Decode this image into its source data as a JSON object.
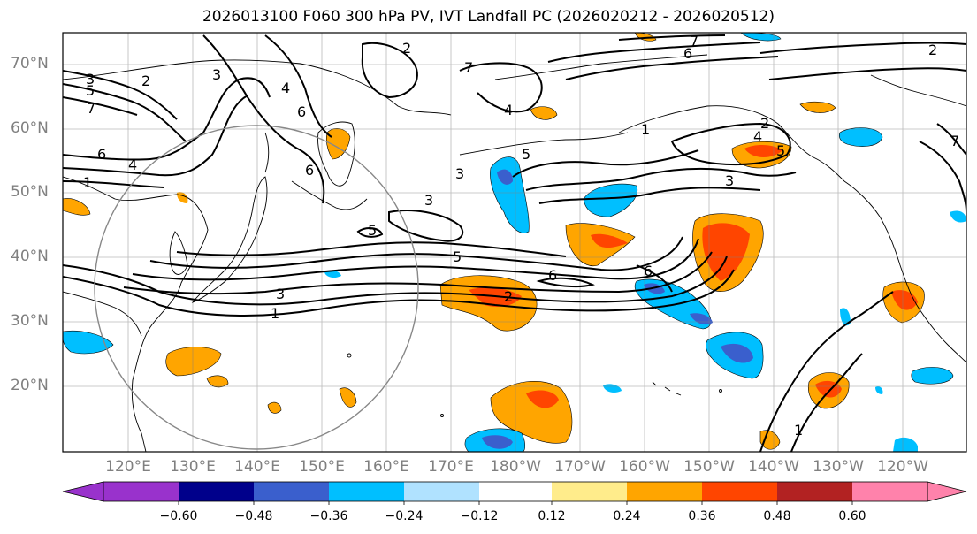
{
  "title": "2026013100 F060 300 hPa PV, IVT Landfall PC (2026020212 - 2026020512)",
  "map": {
    "projection": "PlateCarree",
    "lon_range": [
      "112°E",
      "115°W"
    ],
    "lat_range": [
      "10°N",
      "75°N"
    ],
    "lat_labels": [
      "70°N",
      "60°N",
      "50°N",
      "40°N",
      "30°N",
      "20°N"
    ],
    "lon_labels": [
      "120°E",
      "130°E",
      "140°E",
      "150°E",
      "160°E",
      "170°E",
      "180°W",
      "170°W",
      "160°W",
      "150°W",
      "140°W",
      "130°W",
      "120°W"
    ],
    "contour_labels": [
      "1",
      "2",
      "3",
      "4",
      "5",
      "6",
      "7"
    ],
    "gridlines": true,
    "colors": {
      "land_border": "#000000",
      "contour": "#000000",
      "grid": "#808080"
    }
  },
  "colorbar": {
    "ticks": [
      "−0.60",
      "−0.48",
      "−0.36",
      "−0.24",
      "−0.12",
      "0.12",
      "0.24",
      "0.36",
      "0.48",
      "0.60"
    ],
    "colors": [
      "#9932cc",
      "#00008b",
      "#3a5fcd",
      "#00bfff",
      "#b0e2ff",
      "#ffffff",
      "#ffec8b",
      "#ffa500",
      "#ff4500",
      "#b22222",
      "#ff82ab"
    ],
    "extend": "both"
  }
}
